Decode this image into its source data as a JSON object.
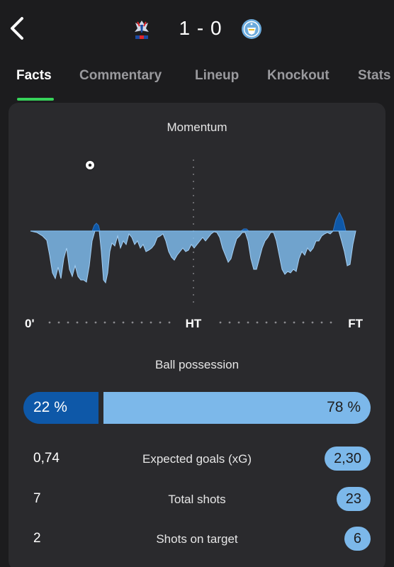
{
  "match": {
    "home_team_icon": "crystal-palace-crest",
    "away_team_icon": "manchester-city-crest",
    "score": "1 - 0"
  },
  "tabs": [
    {
      "label": "Facts",
      "active": true
    },
    {
      "label": "Commentary",
      "active": false
    },
    {
      "label": "Lineup",
      "active": false
    },
    {
      "label": "Knockout",
      "active": false
    },
    {
      "label": "Stats",
      "active": false
    }
  ],
  "momentum": {
    "title": "Momentum",
    "start_label": "0'",
    "half_label": "HT",
    "end_label": "FT",
    "goal_icon": "football-icon",
    "home_color": "#0e58a8",
    "away_color": "#7cb8ea"
  },
  "possession": {
    "title": "Ball possession",
    "home_value": 22,
    "away_value": 78,
    "home_label": "22 %",
    "away_label": "78 %"
  },
  "stats": [
    {
      "label": "Expected goals (xG)",
      "home": "0,74",
      "away": "2,30"
    },
    {
      "label": "Total shots",
      "home": "7",
      "away": "23"
    },
    {
      "label": "Shots on target",
      "home": "2",
      "away": "6"
    }
  ],
  "colors": {
    "background": "#1c1c1e",
    "card": "#2a2a2d",
    "accent": "#37d35a"
  }
}
